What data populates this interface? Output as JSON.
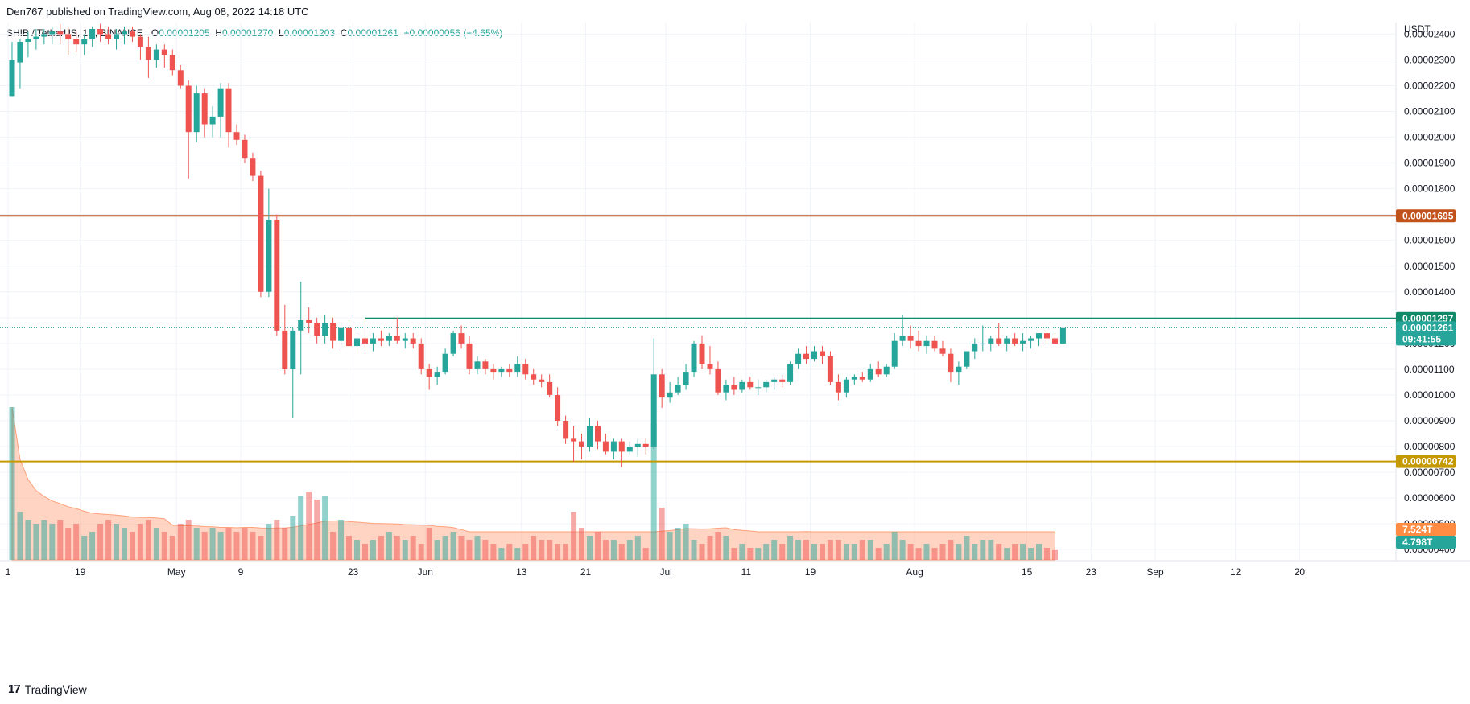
{
  "header": {
    "published_line": "Den767 published on TradingView.com, Aug 08, 2022 14:18 UTC"
  },
  "legend": {
    "symbol": "SHIB / TetherUS, 1D, BINANCE",
    "o_label": "O",
    "o_value": "0.00001205",
    "h_label": "H",
    "h_value": "0.00001270",
    "l_label": "L",
    "l_value": "0.00001203",
    "c_label": "C",
    "c_value": "0.00001261",
    "change": "+0.00000056 (+4.65%)"
  },
  "footer": {
    "logo_mark": "17",
    "brand": "TradingView"
  },
  "colors": {
    "up": "#26a69a",
    "down": "#ef5350",
    "resistance_high": "#c1521a",
    "resistance_mid": "#118a6a",
    "support": "#c49a00",
    "volume_ma": "#ffa07a"
  },
  "chart_data": {
    "type": "candlestick",
    "currency": "USDT",
    "y_tick_labels": [
      "0.00002400",
      "0.00002300",
      "0.00002200",
      "0.00002100",
      "0.00002000",
      "0.00001900",
      "0.00001800",
      "0.00001700",
      "0.00001600",
      "0.00001500",
      "0.00001400",
      "0.00001300",
      "0.00001200",
      "0.00001100",
      "0.00001000",
      "0.00000900",
      "0.00000800",
      "0.00000700",
      "0.00000600",
      "0.00000500",
      "0.00000400"
    ],
    "y_ticks": [
      2.4e-05,
      2.3e-05,
      2.2e-05,
      2.1e-05,
      2e-05,
      1.9e-05,
      1.8e-05,
      1.7e-05,
      1.6e-05,
      1.5e-05,
      1.4e-05,
      1.3e-05,
      1.2e-05,
      1.1e-05,
      1e-05,
      9e-06,
      8e-06,
      7e-06,
      6e-06,
      5e-06,
      4e-06
    ],
    "ylim": [
      3.6e-06,
      2.445e-05
    ],
    "x_tick_labels": [
      "1",
      "19",
      "May",
      "9",
      "23",
      "Jun",
      "13",
      "21",
      "Jul",
      "11",
      "19",
      "Aug",
      "15",
      "23",
      "Sep",
      "12",
      "20"
    ],
    "x_tick_days": [
      0,
      9,
      21,
      29,
      43,
      52,
      64,
      72,
      82,
      92,
      100,
      113,
      127,
      135,
      143,
      153,
      161
    ],
    "x_range_days": [
      0,
      173
    ],
    "horizontal_levels": [
      {
        "label": "0.00001695",
        "value": 1.695e-05,
        "color": "#c1521a"
      },
      {
        "label": "0.00001297",
        "value": 1.297e-05,
        "color": "#118a6a",
        "start_day": 44.5
      },
      {
        "label": "0.00000742",
        "value": 7.42e-06,
        "color": "#c49a00"
      }
    ],
    "last_price": {
      "label": "0.00001261",
      "value": 1.261e-05,
      "countdown": "09:41:55"
    },
    "volume_labels": [
      {
        "label": "7.524T",
        "color": "#ff8c42"
      },
      {
        "label": "4.798T",
        "color": "#26a69a"
      }
    ],
    "candles": [
      [
        2.16e-05,
        2.37e-05,
        2.16e-05,
        2.3e-05
      ],
      [
        2.29e-05,
        2.38e-05,
        2.19e-05,
        2.37e-05
      ],
      [
        2.37e-05,
        2.41e-05,
        2.31e-05,
        2.38e-05
      ],
      [
        2.38e-05,
        2.42e-05,
        2.34e-05,
        2.39e-05
      ],
      [
        2.39e-05,
        2.42e-05,
        2.36e-05,
        2.4e-05
      ],
      [
        2.4e-05,
        2.43e-05,
        2.36e-05,
        2.41e-05
      ],
      [
        2.41e-05,
        2.44e-05,
        2.36e-05,
        2.4e-05
      ],
      [
        2.4e-05,
        2.43e-05,
        2.32e-05,
        2.38e-05
      ],
      [
        2.38e-05,
        2.41e-05,
        2.33e-05,
        2.36e-05
      ],
      [
        2.36e-05,
        2.4e-05,
        2.32e-05,
        2.38e-05
      ],
      [
        2.38e-05,
        2.43e-05,
        2.35e-05,
        2.42e-05
      ],
      [
        2.42e-05,
        2.44e-05,
        2.37e-05,
        2.4e-05
      ],
      [
        2.4e-05,
        2.43e-05,
        2.36e-05,
        2.38e-05
      ],
      [
        2.38e-05,
        2.42e-05,
        2.34e-05,
        2.4e-05
      ],
      [
        2.4e-05,
        2.43e-05,
        2.36e-05,
        2.41e-05
      ],
      [
        2.41e-05,
        2.43e-05,
        2.37e-05,
        2.39e-05
      ],
      [
        2.39e-05,
        2.4e-05,
        2.3e-05,
        2.35e-05
      ],
      [
        2.35e-05,
        2.39e-05,
        2.23e-05,
        2.3e-05
      ],
      [
        2.3e-05,
        2.36e-05,
        2.27e-05,
        2.34e-05
      ],
      [
        2.34e-05,
        2.36e-05,
        2.27e-05,
        2.32e-05
      ],
      [
        2.32e-05,
        2.34e-05,
        2.24e-05,
        2.26e-05
      ],
      [
        2.26e-05,
        2.28e-05,
        2.19e-05,
        2.2e-05
      ],
      [
        2.2e-05,
        2.22e-05,
        1.84e-05,
        2.02e-05
      ],
      [
        2.02e-05,
        2.2e-05,
        1.98e-05,
        2.17e-05
      ],
      [
        2.17e-05,
        2.19e-05,
        2e-05,
        2.05e-05
      ],
      [
        2.05e-05,
        2.12e-05,
        2e-05,
        2.08e-05
      ],
      [
        2.08e-05,
        2.21e-05,
        2e-05,
        2.19e-05
      ],
      [
        2.19e-05,
        2.21e-05,
        1.96e-05,
        2.02e-05
      ],
      [
        2.02e-05,
        2.05e-05,
        1.97e-05,
        1.99e-05
      ],
      [
        1.99e-05,
        2.01e-05,
        1.9e-05,
        1.92e-05
      ],
      [
        1.92e-05,
        1.94e-05,
        1.83e-05,
        1.85e-05
      ],
      [
        1.85e-05,
        1.87e-05,
        1.38e-05,
        1.4e-05
      ],
      [
        1.4e-05,
        1.8e-05,
        1.38e-05,
        1.68e-05
      ],
      [
        1.68e-05,
        1.7e-05,
        1.23e-05,
        1.25e-05
      ],
      [
        1.25e-05,
        1.35e-05,
        1.08e-05,
        1.1e-05
      ],
      [
        1.1e-05,
        1.26e-05,
        9.1e-06,
        1.25e-05
      ],
      [
        1.25e-05,
        1.44e-05,
        1.08e-05,
        1.29e-05
      ],
      [
        1.29e-05,
        1.34e-05,
        1.24e-05,
        1.28e-05
      ],
      [
        1.28e-05,
        1.3e-05,
        1.2e-05,
        1.23e-05
      ],
      [
        1.23e-05,
        1.31e-05,
        1.2e-05,
        1.28e-05
      ],
      [
        1.28e-05,
        1.3e-05,
        1.18e-05,
        1.21e-05
      ],
      [
        1.21e-05,
        1.28e-05,
        1.18e-05,
        1.26e-05
      ],
      [
        1.26e-05,
        1.29e-05,
        1.19e-05,
        1.19e-05
      ],
      [
        1.19e-05,
        1.24e-05,
        1.16e-05,
        1.22e-05
      ],
      [
        1.22e-05,
        1.25e-05,
        1.18e-05,
        1.2e-05
      ],
      [
        1.2e-05,
        1.24e-05,
        1.17e-05,
        1.22e-05
      ],
      [
        1.22e-05,
        1.25e-05,
        1.19e-05,
        1.21e-05
      ],
      [
        1.21e-05,
        1.24e-05,
        1.19e-05,
        1.23e-05
      ],
      [
        1.23e-05,
        1.3e-05,
        1.2e-05,
        1.21e-05
      ],
      [
        1.21e-05,
        1.24e-05,
        1.18e-05,
        1.22e-05
      ],
      [
        1.22e-05,
        1.24e-05,
        1.18e-05,
        1.2e-05
      ],
      [
        1.2e-05,
        1.22e-05,
        1.08e-05,
        1.1e-05
      ],
      [
        1.1e-05,
        1.12e-05,
        1.02e-05,
        1.07e-05
      ],
      [
        1.07e-05,
        1.11e-05,
        1.04e-05,
        1.09e-05
      ],
      [
        1.09e-05,
        1.18e-05,
        1.08e-05,
        1.16e-05
      ],
      [
        1.16e-05,
        1.25e-05,
        1.15e-05,
        1.24e-05
      ],
      [
        1.24e-05,
        1.27e-05,
        1.18e-05,
        1.2e-05
      ],
      [
        1.2e-05,
        1.23e-05,
        1.08e-05,
        1.1e-05
      ],
      [
        1.1e-05,
        1.15e-05,
        1.08e-05,
        1.13e-05
      ],
      [
        1.13e-05,
        1.14e-05,
        1.08e-05,
        1.1e-05
      ],
      [
        1.1e-05,
        1.12e-05,
        1.06e-05,
        1.09e-05
      ],
      [
        1.09e-05,
        1.11e-05,
        1.07e-05,
        1.1e-05
      ],
      [
        1.1e-05,
        1.12e-05,
        1.07e-05,
        1.09e-05
      ],
      [
        1.09e-05,
        1.15e-05,
        1.07e-05,
        1.12e-05
      ],
      [
        1.12e-05,
        1.14e-05,
        1.06e-05,
        1.08e-05
      ],
      [
        1.08e-05,
        1.1e-05,
        1.04e-05,
        1.06e-05
      ],
      [
        1.06e-05,
        1.08e-05,
        1.03e-05,
        1.05e-05
      ],
      [
        1.05e-05,
        1.08e-05,
        9.9e-06,
        1e-05
      ],
      [
        1e-05,
        1.03e-05,
        8.8e-06,
        9e-06
      ],
      [
        9e-06,
        9.2e-06,
        8.1e-06,
        8.3e-06
      ],
      [
        8.3e-06,
        8.8e-06,
        7.4e-06,
        8.2e-06
      ],
      [
        8.2e-06,
        8.5e-06,
        7.5e-06,
        8e-06
      ],
      [
        8e-06,
        9.1e-06,
        7.8e-06,
        8.8e-06
      ],
      [
        8.8e-06,
        9e-06,
        7.9e-06,
        8.2e-06
      ],
      [
        8.2e-06,
        8.5e-06,
        7.7e-06,
        7.8e-06
      ],
      [
        7.8e-06,
        8.3e-06,
        7.5e-06,
        8.2e-06
      ],
      [
        8.2e-06,
        8.3e-06,
        7.2e-06,
        7.8e-06
      ],
      [
        7.8e-06,
        8.2e-06,
        7.7e-06,
        8e-06
      ],
      [
        8e-06,
        8.3e-06,
        7.6e-06,
        8.1e-06
      ],
      [
        8.1e-06,
        8.3e-06,
        7.7e-06,
        8e-06
      ],
      [
        8e-06,
        1.22e-05,
        7.9e-06,
        1.08e-05
      ],
      [
        1.08e-05,
        1.1e-05,
        9.5e-06,
        9.9e-06
      ],
      [
        9.9e-06,
        1.05e-05,
        9.7e-06,
        1.01e-05
      ],
      [
        1.01e-05,
        1.07e-05,
        1e-05,
        1.04e-05
      ],
      [
        1.04e-05,
        1.12e-05,
        1.02e-05,
        1.09e-05
      ],
      [
        1.09e-05,
        1.21e-05,
        1.07e-05,
        1.2e-05
      ],
      [
        1.2e-05,
        1.23e-05,
        1.1e-05,
        1.12e-05
      ],
      [
        1.12e-05,
        1.19e-05,
        1.08e-05,
        1.1e-05
      ],
      [
        1.1e-05,
        1.13e-05,
        1e-05,
        1.01e-05
      ],
      [
        1.01e-05,
        1.06e-05,
        9.8e-06,
        1.04e-05
      ],
      [
        1.04e-05,
        1.07e-05,
        1e-05,
        1.02e-05
      ],
      [
        1.02e-05,
        1.06e-05,
        1.01e-05,
        1.05e-05
      ],
      [
        1.05e-05,
        1.07e-05,
        1.02e-05,
        1.03e-05
      ],
      [
        1.03e-05,
        1.06e-05,
        1e-05,
        1.03e-05
      ],
      [
        1.03e-05,
        1.06e-05,
        1.01e-05,
        1.05e-05
      ],
      [
        1.05e-05,
        1.07e-05,
        1.02e-05,
        1.06e-05
      ],
      [
        1.06e-05,
        1.08e-05,
        1.03e-05,
        1.05e-05
      ],
      [
        1.05e-05,
        1.13e-05,
        1.04e-05,
        1.12e-05
      ],
      [
        1.12e-05,
        1.18e-05,
        1.1e-05,
        1.16e-05
      ],
      [
        1.16e-05,
        1.19e-05,
        1.12e-05,
        1.14e-05
      ],
      [
        1.14e-05,
        1.19e-05,
        1.13e-05,
        1.17e-05
      ],
      [
        1.17e-05,
        1.19e-05,
        1.12e-05,
        1.15e-05
      ],
      [
        1.15e-05,
        1.17e-05,
        1.04e-05,
        1.05e-05
      ],
      [
        1.05e-05,
        1.08e-05,
        9.8e-06,
        1.01e-05
      ],
      [
        1.01e-05,
        1.07e-05,
        9.9e-06,
        1.06e-05
      ],
      [
        1.06e-05,
        1.08e-05,
        1.04e-05,
        1.07e-05
      ],
      [
        1.07e-05,
        1.09e-05,
        1.05e-05,
        1.06e-05
      ],
      [
        1.06e-05,
        1.12e-05,
        1.05e-05,
        1.1e-05
      ],
      [
        1.1e-05,
        1.13e-05,
        1.07e-05,
        1.08e-05
      ],
      [
        1.08e-05,
        1.12e-05,
        1.07e-05,
        1.11e-05
      ],
      [
        1.11e-05,
        1.24e-05,
        1.1e-05,
        1.21e-05
      ],
      [
        1.21e-05,
        1.31e-05,
        1.19e-05,
        1.23e-05
      ],
      [
        1.23e-05,
        1.27e-05,
        1.18e-05,
        1.21e-05
      ],
      [
        1.21e-05,
        1.25e-05,
        1.17e-05,
        1.19e-05
      ],
      [
        1.19e-05,
        1.23e-05,
        1.16e-05,
        1.21e-05
      ],
      [
        1.21e-05,
        1.23e-05,
        1.17e-05,
        1.18e-05
      ],
      [
        1.18e-05,
        1.21e-05,
        1.15e-05,
        1.16e-05
      ],
      [
        1.16e-05,
        1.18e-05,
        1.05e-05,
        1.09e-05
      ],
      [
        1.09e-05,
        1.13e-05,
        1.04e-05,
        1.11e-05
      ],
      [
        1.11e-05,
        1.17e-05,
        1.1e-05,
        1.17e-05
      ],
      [
        1.17e-05,
        1.22e-05,
        1.14e-05,
        1.2e-05
      ],
      [
        1.2e-05,
        1.27e-05,
        1.17e-05,
        1.2e-05
      ],
      [
        1.2e-05,
        1.23e-05,
        1.17e-05,
        1.22e-05
      ],
      [
        1.22e-05,
        1.28e-05,
        1.19e-05,
        1.2e-05
      ],
      [
        1.2e-05,
        1.23e-05,
        1.17e-05,
        1.22e-05
      ],
      [
        1.22e-05,
        1.24e-05,
        1.19e-05,
        1.2e-05
      ],
      [
        1.2e-05,
        1.24e-05,
        1.17e-05,
        1.21e-05
      ],
      [
        1.21e-05,
        1.23e-05,
        1.18e-05,
        1.22e-05
      ],
      [
        1.22e-05,
        1.24e-05,
        1.19e-05,
        1.24e-05
      ],
      [
        1.24e-05,
        1.25e-05,
        1.2e-05,
        1.22e-05
      ],
      [
        1.22e-05,
        1.24e-05,
        1.2e-05,
        1.2e-05
      ],
      [
        1.2e-05,
        1.27e-05,
        1.2e-05,
        1.26e-05
      ]
    ],
    "volume_ylim": [
      0,
      0.2
    ],
    "volumes": [
      0.19,
      0.06,
      0.05,
      0.045,
      0.05,
      0.045,
      0.05,
      0.04,
      0.045,
      0.03,
      0.035,
      0.045,
      0.05,
      0.045,
      0.04,
      0.035,
      0.045,
      0.05,
      0.04,
      0.035,
      0.03,
      0.045,
      0.05,
      0.04,
      0.035,
      0.04,
      0.035,
      0.04,
      0.035,
      0.04,
      0.035,
      0.03,
      0.045,
      0.05,
      0.04,
      0.055,
      0.08,
      0.085,
      0.075,
      0.08,
      0.035,
      0.05,
      0.03,
      0.025,
      0.02,
      0.025,
      0.03,
      0.035,
      0.03,
      0.025,
      0.03,
      0.02,
      0.04,
      0.025,
      0.03,
      0.035,
      0.03,
      0.025,
      0.03,
      0.025,
      0.02,
      0.015,
      0.02,
      0.015,
      0.02,
      0.03,
      0.025,
      0.025,
      0.02,
      0.02,
      0.06,
      0.04,
      0.03,
      0.035,
      0.025,
      0.025,
      0.02,
      0.025,
      0.03,
      0.015,
      0.17,
      0.065,
      0.035,
      0.04,
      0.045,
      0.025,
      0.02,
      0.03,
      0.035,
      0.03,
      0.015,
      0.02,
      0.015,
      0.015,
      0.02,
      0.025,
      0.02,
      0.03,
      0.025,
      0.025,
      0.02,
      0.02,
      0.025,
      0.025,
      0.02,
      0.02,
      0.025,
      0.025,
      0.015,
      0.02,
      0.035,
      0.025,
      0.02,
      0.015,
      0.02,
      0.015,
      0.02,
      0.025,
      0.02,
      0.03,
      0.02,
      0.025,
      0.025,
      0.02,
      0.015,
      0.02,
      0.02,
      0.015,
      0.02,
      0.015,
      0.013
    ]
  }
}
